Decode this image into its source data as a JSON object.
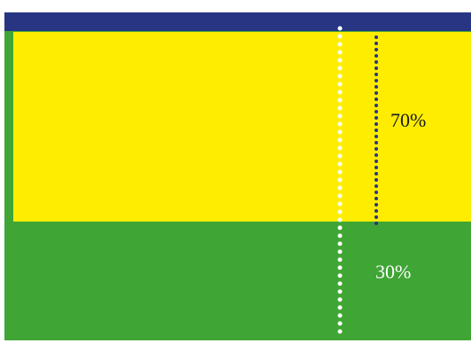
{
  "diagram": {
    "colors": {
      "background": "#ffffff",
      "top_bar": "#283583",
      "green": "#3fa535",
      "yellow": "#ffed00",
      "white_marker": "#ffffff",
      "navy_marker": "#283583",
      "label_top_color": "#1a1a1a",
      "label_bottom_color": "#ffffff"
    },
    "shares": {
      "yellow_fraction": 0.7,
      "green_fraction": 0.3
    },
    "labels": {
      "top": "70%",
      "bottom": "30%"
    }
  }
}
